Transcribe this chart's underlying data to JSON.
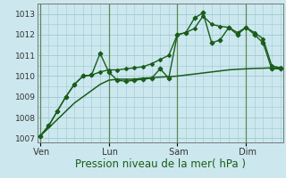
{
  "background_color": "#cce8ee",
  "grid_color": "#9dc8d2",
  "line_color": "#1a5c1a",
  "marker_color": "#1a5c1a",
  "xlabel": "Pression niveau de la mer( hPa )",
  "ylim": [
    1006.8,
    1013.5
  ],
  "yticks": [
    1007,
    1008,
    1009,
    1010,
    1011,
    1012,
    1013
  ],
  "day_labels": [
    " Ven",
    " Lun",
    " Sam",
    " Dim"
  ],
  "day_positions": [
    0,
    48,
    96,
    144
  ],
  "total_points": 168,
  "series1_x": [
    0,
    6,
    12,
    18,
    24,
    30,
    36,
    42,
    48,
    54,
    60,
    66,
    72,
    78,
    84,
    90,
    96,
    102,
    108,
    114,
    120,
    126,
    132,
    138,
    144,
    150,
    156,
    162,
    168
  ],
  "series1_y": [
    1007.1,
    1007.5,
    1007.9,
    1008.3,
    1008.7,
    1009.0,
    1009.3,
    1009.6,
    1009.8,
    1009.85,
    1009.85,
    1009.85,
    1009.9,
    1009.92,
    1009.95,
    1009.97,
    1010.0,
    1010.05,
    1010.1,
    1010.15,
    1010.2,
    1010.25,
    1010.3,
    1010.33,
    1010.35,
    1010.37,
    1010.38,
    1010.4,
    1010.4
  ],
  "series2_x": [
    0,
    6,
    12,
    18,
    24,
    30,
    36,
    42,
    48,
    54,
    60,
    66,
    72,
    78,
    84,
    90,
    96,
    102,
    108,
    114,
    120,
    126,
    132,
    138,
    144,
    150,
    156,
    162,
    168
  ],
  "series2_y": [
    1007.1,
    1007.6,
    1008.3,
    1009.0,
    1009.6,
    1010.0,
    1010.05,
    1011.1,
    1010.2,
    1009.8,
    1009.75,
    1009.8,
    1009.85,
    1009.9,
    1010.35,
    1009.9,
    1012.0,
    1012.1,
    1012.8,
    1013.05,
    1011.6,
    1011.75,
    1012.35,
    1012.0,
    1012.35,
    1012.0,
    1011.6,
    1010.35,
    1010.35
  ],
  "series3_x": [
    0,
    6,
    12,
    18,
    24,
    30,
    36,
    42,
    48,
    54,
    60,
    66,
    72,
    78,
    84,
    90,
    96,
    102,
    108,
    114,
    120,
    126,
    132,
    138,
    144,
    150,
    156,
    162,
    168
  ],
  "series3_y": [
    1007.1,
    1007.6,
    1008.3,
    1009.0,
    1009.6,
    1010.0,
    1010.05,
    1010.2,
    1010.3,
    1010.3,
    1010.35,
    1010.4,
    1010.45,
    1010.6,
    1010.8,
    1011.0,
    1012.0,
    1012.1,
    1012.3,
    1012.9,
    1012.5,
    1012.4,
    1012.35,
    1012.1,
    1012.35,
    1012.1,
    1011.8,
    1010.5,
    1010.4
  ],
  "vline_color": "#5a8a5a",
  "tick_color": "#333333",
  "xlabel_color": "#1a5c1a",
  "xlabel_fontsize": 8.5,
  "ytick_fontsize": 6.5,
  "xtick_fontsize": 7.0
}
